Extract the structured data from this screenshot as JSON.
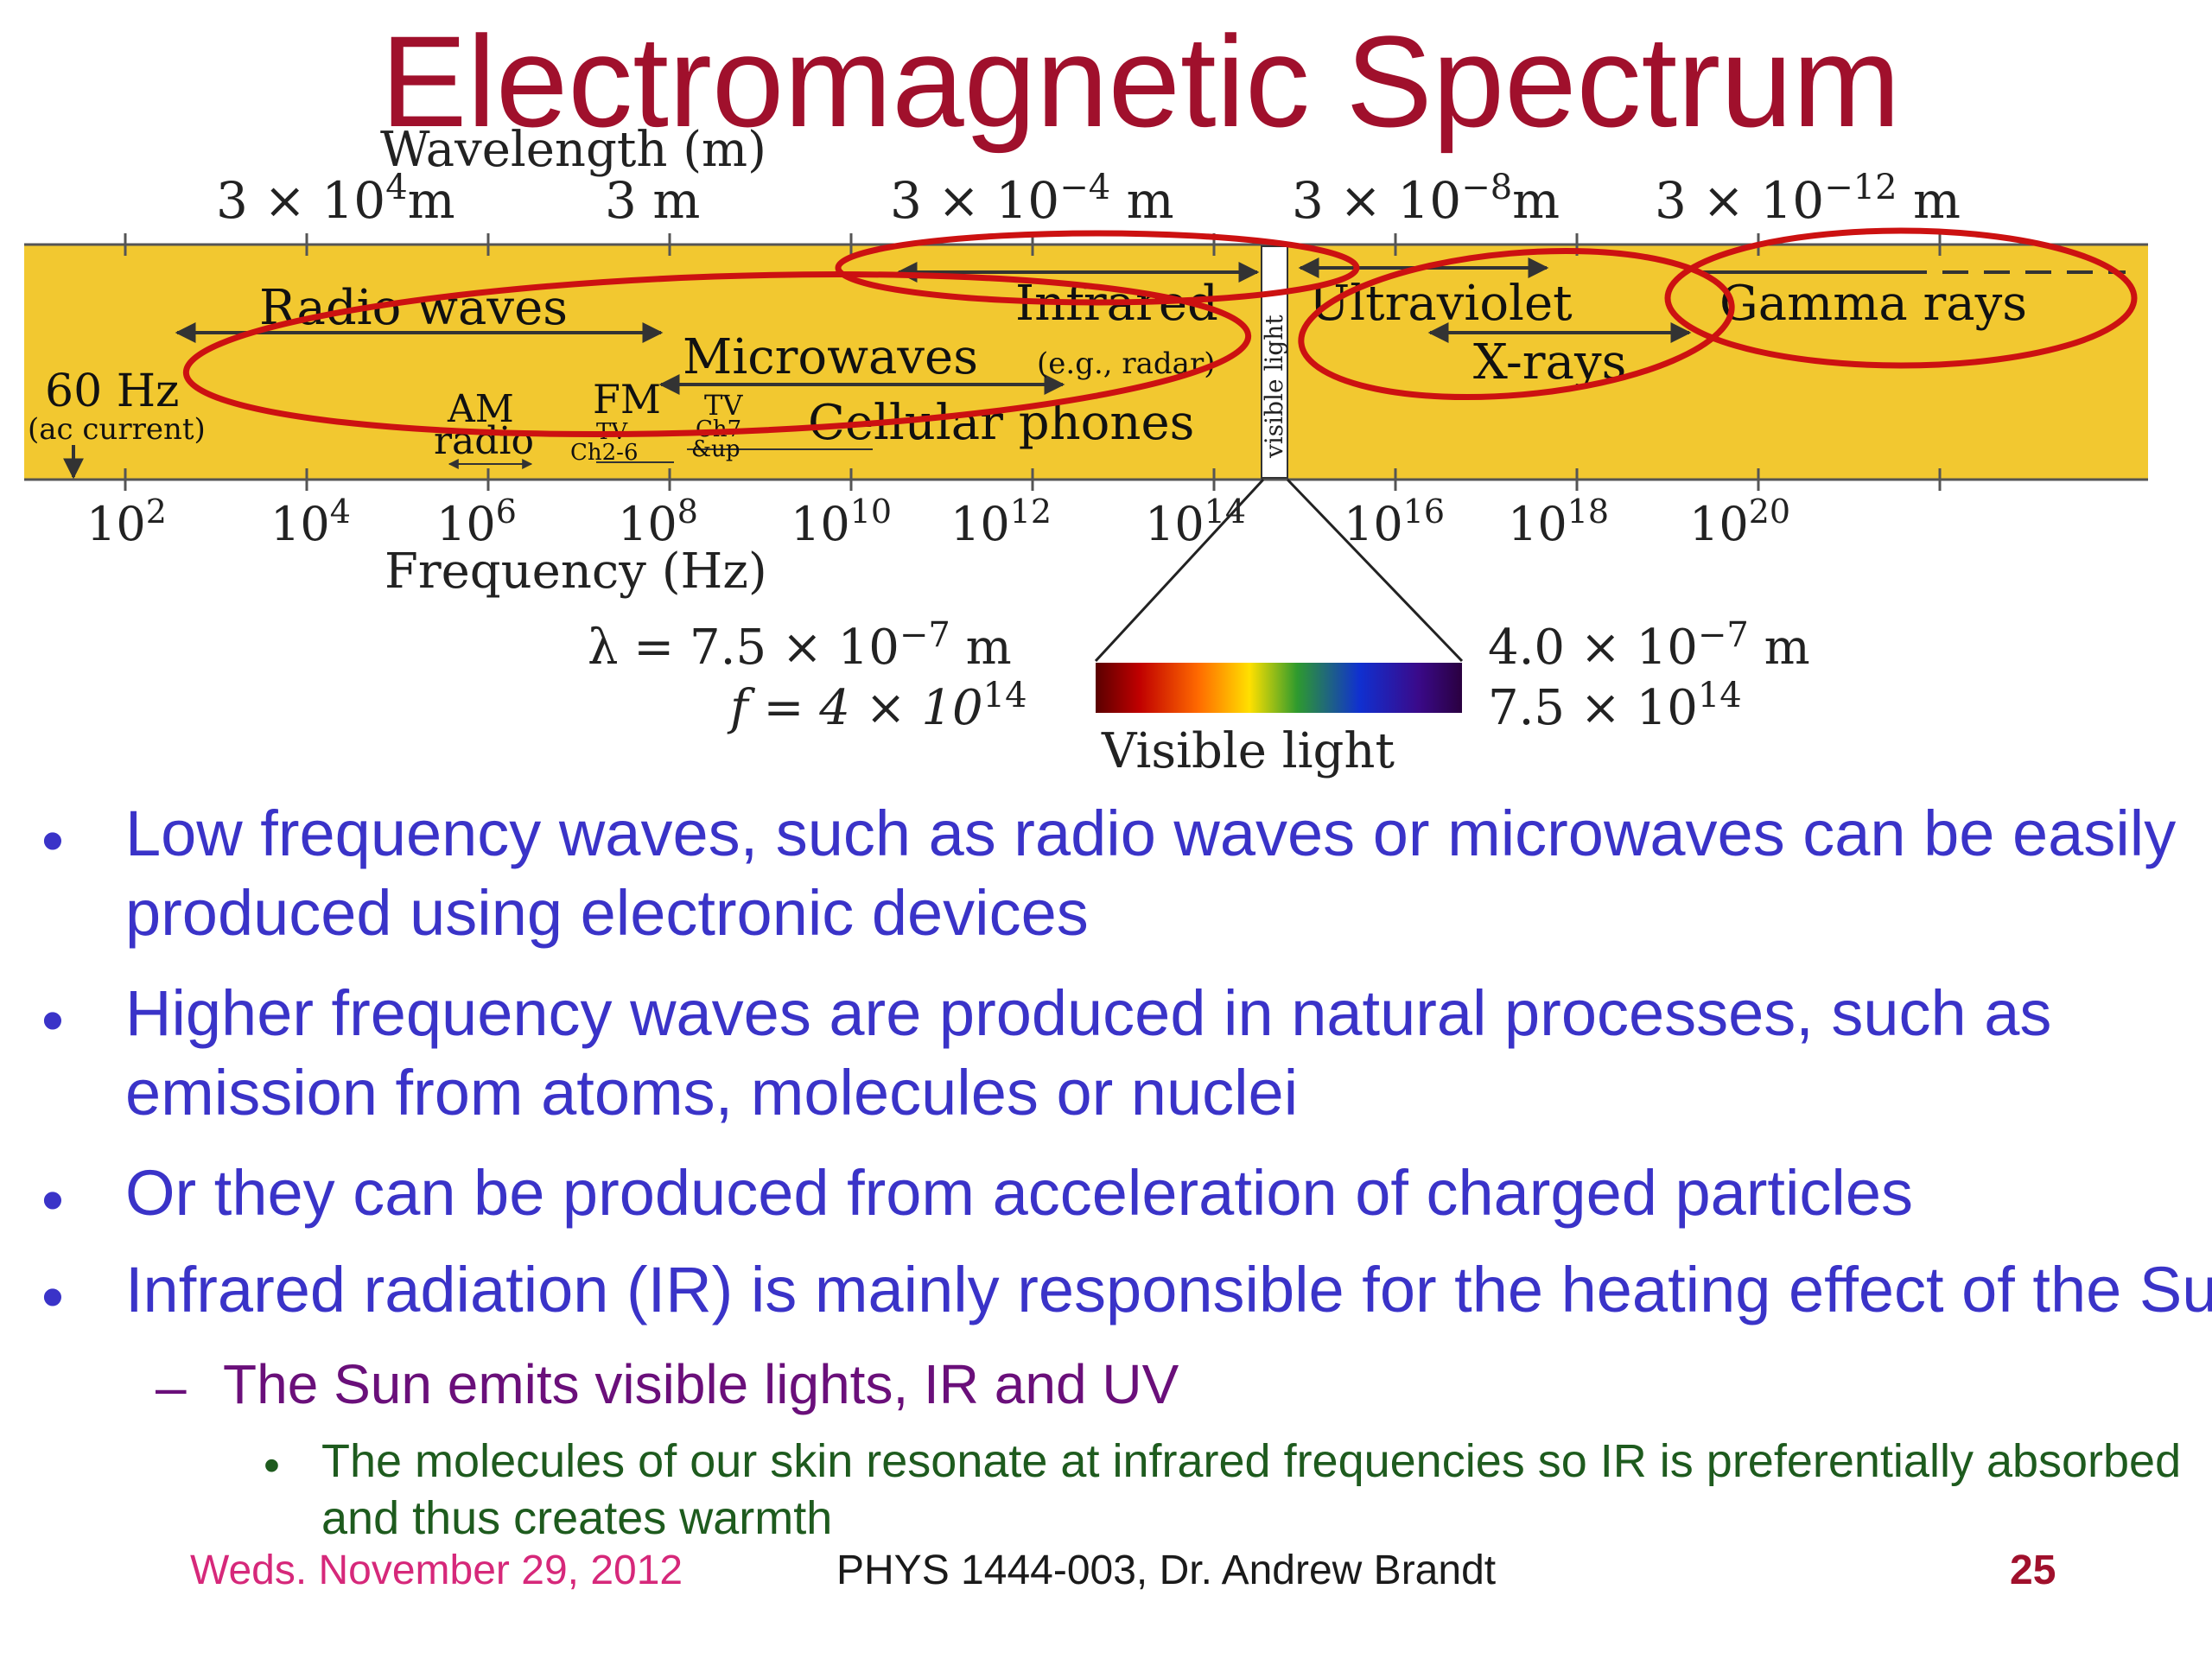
{
  "title": "Electromagnetic Spectrum",
  "diagram": {
    "wavelength_axis_label": "Wavelength (m)",
    "wavelength_ticks": [
      {
        "mant": "3 × 10",
        "exp": "4",
        "unit": "m"
      },
      {
        "mant": "3 m",
        "exp": "",
        "unit": ""
      },
      {
        "mant": "3 × 10",
        "exp": "−4",
        "unit": " m"
      },
      {
        "mant": "3 × 10",
        "exp": "−8",
        "unit": "m"
      },
      {
        "mant": "3 × 10",
        "exp": "−12",
        "unit": " m"
      }
    ],
    "frequency_axis_label": "Frequency (Hz)",
    "frequency_ticks": [
      {
        "base": "10",
        "exp": "2"
      },
      {
        "base": "10",
        "exp": "4"
      },
      {
        "base": "10",
        "exp": "6"
      },
      {
        "base": "10",
        "exp": "8"
      },
      {
        "base": "10",
        "exp": "10"
      },
      {
        "base": "10",
        "exp": "12"
      },
      {
        "base": "10",
        "exp": "14"
      },
      {
        "base": "10",
        "exp": "16"
      },
      {
        "base": "10",
        "exp": "18"
      },
      {
        "base": "10",
        "exp": "20"
      }
    ],
    "bands": {
      "radio": "Radio waves",
      "microwaves": "Microwaves",
      "microwaves_note": "(e.g., radar)",
      "infrared": "Infrared",
      "visible": "visible light",
      "ultraviolet": "Ultraviolet",
      "xrays": "X-rays",
      "gamma": "Gamma rays",
      "hz60": "60 Hz",
      "ac": "(ac current)",
      "am1": "AM",
      "am2": "radio",
      "fm": "FM",
      "tv1a": "TV",
      "tv1b": "Ch2-6",
      "tv2a": "TV",
      "tv2b": "Ch7",
      "tv2c": "&up",
      "cellular": "Cellular phones"
    },
    "visible_inset": {
      "left_lambda": "λ = 7.5 × 10",
      "left_lambda_exp": "−7",
      "left_lambda_unit": " m",
      "left_f": "f = 4 × 10",
      "left_f_exp": "14",
      "right_lambda": "4.0 × 10",
      "right_lambda_exp": "−7",
      "right_lambda_unit": " m",
      "right_f": "7.5 × 10",
      "right_f_exp": "14",
      "label": "Visible light"
    },
    "colors": {
      "band": "#f2c830",
      "highlight": "#cc1111",
      "title": "#a0102c"
    }
  },
  "bullets": [
    {
      "level": 1,
      "lines": [
        "Low frequency waves, such as radio waves or microwaves can be easily",
        "produced using electronic devices"
      ]
    },
    {
      "level": 1,
      "lines": [
        "Higher frequency waves are produced in natural processes, such as",
        "emission from atoms, molecules or nuclei"
      ]
    },
    {
      "level": 1,
      "lines": [
        "Or they can be produced from acceleration of charged particles"
      ]
    },
    {
      "level": 1,
      "lines": [
        "Infrared radiation (IR) is mainly responsible for the heating effect of the Sun"
      ]
    },
    {
      "level": 2,
      "lines": [
        "The Sun emits visible lights, IR and UV"
      ]
    },
    {
      "level": 3,
      "lines": [
        "The molecules of our skin resonate at infrared frequencies so IR is preferentially absorbed",
        "and thus creates warmth"
      ]
    }
  ],
  "footer": {
    "date": "Weds.  November  29, 2012",
    "course": "PHYS 1444-003, Dr. Andrew Brandt",
    "page": "25"
  }
}
